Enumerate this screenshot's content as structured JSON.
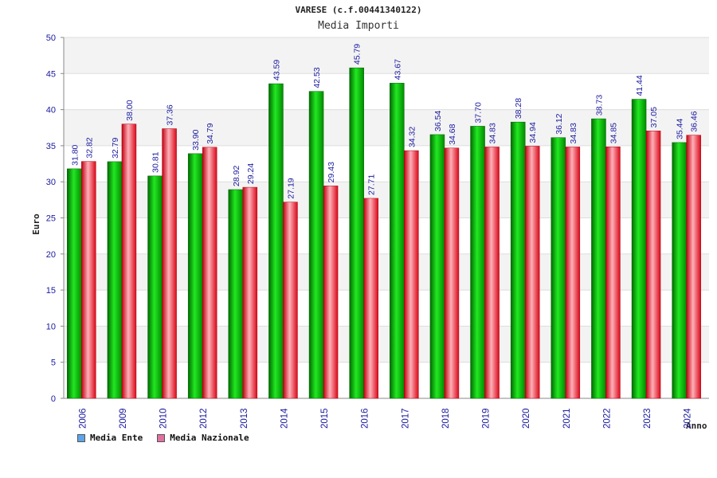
{
  "chart_data": {
    "type": "bar",
    "title": "VARESE (c.f.00441340122)",
    "subtitle": "Media Importi",
    "xlabel": "Anno",
    "ylabel": "Euro",
    "ylim": [
      0,
      50
    ],
    "yticks": [
      0,
      5,
      10,
      15,
      20,
      25,
      30,
      35,
      40,
      45,
      50
    ],
    "grid": true,
    "legend_position": "bottom-left",
    "categories": [
      "2006",
      "2009",
      "2010",
      "2012",
      "2013",
      "2014",
      "2015",
      "2016",
      "2017",
      "2018",
      "2019",
      "2020",
      "2021",
      "2022",
      "2023",
      "2024"
    ],
    "series": [
      {
        "name": "Media Ente",
        "color": "#00b000",
        "legend_color": "#5da5e8",
        "values": [
          31.8,
          32.79,
          30.81,
          33.9,
          28.92,
          43.59,
          42.53,
          45.79,
          43.67,
          36.54,
          37.7,
          38.28,
          36.12,
          38.73,
          41.44,
          35.44
        ]
      },
      {
        "name": "Media Nazionale",
        "color": "#e8101c",
        "legend_color": "#e070a0",
        "values": [
          32.82,
          38.0,
          37.36,
          34.79,
          29.24,
          27.19,
          29.43,
          27.71,
          34.32,
          34.68,
          34.83,
          34.94,
          34.83,
          34.85,
          37.05,
          36.46
        ]
      }
    ]
  }
}
